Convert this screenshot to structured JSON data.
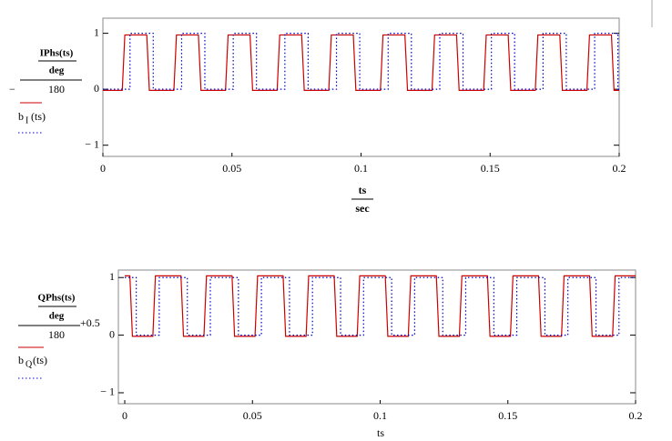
{
  "chart_data": [
    {
      "type": "line",
      "y_label": {
        "prefix": "−",
        "numerator": "IPhs(ts)",
        "inner_denominator": "deg",
        "denominator": "180"
      },
      "x_label": {
        "numerator": "ts",
        "denominator": "sec"
      },
      "xlim": [
        0,
        0.2
      ],
      "ylim": [
        -1.2,
        1.27
      ],
      "xticks": [
        0,
        0.05,
        0.1,
        0.15,
        0.2
      ],
      "yticks": [
        {
          "value": -1,
          "label": "− 1"
        },
        0,
        1
      ],
      "series": [
        {
          "color": "#cc0000",
          "style": "solid",
          "x": [
            0,
            0.0075,
            0.0085,
            0.017,
            0.018,
            0.0275,
            0.0285,
            0.037,
            0.038,
            0.0475,
            0.0485,
            0.057,
            0.058,
            0.0675,
            0.0685,
            0.077,
            0.078,
            0.0875,
            0.0885,
            0.097,
            0.098,
            0.1075,
            0.1085,
            0.117,
            0.118,
            0.1275,
            0.1285,
            0.137,
            0.138,
            0.1475,
            0.1485,
            0.157,
            0.158,
            0.1675,
            0.1685,
            0.177,
            0.178,
            0.1875,
            0.1885,
            0.197,
            0.198,
            0.2
          ],
          "values": [
            -0.02,
            -0.02,
            0.97,
            0.97,
            -0.02,
            -0.02,
            0.97,
            0.97,
            -0.02,
            -0.02,
            0.97,
            0.97,
            -0.02,
            -0.02,
            0.97,
            0.97,
            -0.02,
            -0.02,
            0.97,
            0.97,
            -0.02,
            -0.02,
            0.97,
            0.97,
            -0.02,
            -0.02,
            0.97,
            0.97,
            -0.02,
            -0.02,
            0.97,
            0.97,
            -0.02,
            -0.02,
            0.97,
            0.97,
            -0.02,
            -0.02,
            0.97,
            0.97,
            -0.02,
            -0.02
          ]
        },
        {
          "name": "b",
          "name_sub": "I",
          "name_suffix": "(ts)",
          "color": "#0000cc",
          "style": "dotted",
          "x": [
            0,
            0.0105,
            0.0105,
            0.0195,
            0.0195,
            0.0305,
            0.0305,
            0.0395,
            0.0395,
            0.0505,
            0.0505,
            0.0595,
            0.0595,
            0.0705,
            0.0705,
            0.0795,
            0.0795,
            0.0905,
            0.0905,
            0.0995,
            0.0995,
            0.1105,
            0.1105,
            0.1195,
            0.1195,
            0.1305,
            0.1305,
            0.1395,
            0.1395,
            0.1505,
            0.1505,
            0.1595,
            0.1595,
            0.1705,
            0.1705,
            0.1795,
            0.1795,
            0.1905,
            0.1905,
            0.1995,
            0.1995,
            0.2
          ],
          "values": [
            0,
            0,
            1,
            1,
            0,
            0,
            1,
            1,
            0,
            0,
            1,
            1,
            0,
            0,
            1,
            1,
            0,
            0,
            1,
            1,
            0,
            0,
            1,
            1,
            0,
            0,
            1,
            1,
            0,
            0,
            1,
            1,
            0,
            0,
            1,
            1,
            0,
            0,
            1,
            1,
            0,
            0
          ]
        }
      ]
    },
    {
      "type": "line",
      "y_label": {
        "numerator": "QPhs(ts)",
        "inner_denominator": "deg",
        "denominator": "180",
        "suffix": "+0.5"
      },
      "x_label": {
        "numerator": "ts"
      },
      "xlim": [
        -0.0025,
        0.2
      ],
      "ylim": [
        -1.19,
        1.13
      ],
      "xticks": [
        0,
        0.05,
        0.1,
        0.15,
        0.2
      ],
      "yticks": [
        {
          "value": -1,
          "label": "− 1"
        },
        0,
        1
      ],
      "series": [
        {
          "color": "#cc0000",
          "style": "solid",
          "x": [
            0,
            0.002,
            0.003,
            0.011,
            0.012,
            0.022,
            0.023,
            0.031,
            0.032,
            0.042,
            0.043,
            0.051,
            0.052,
            0.062,
            0.063,
            0.071,
            0.072,
            0.082,
            0.083,
            0.091,
            0.092,
            0.102,
            0.103,
            0.111,
            0.112,
            0.122,
            0.123,
            0.131,
            0.132,
            0.142,
            0.143,
            0.151,
            0.152,
            0.162,
            0.163,
            0.171,
            0.172,
            0.182,
            0.183,
            0.191,
            0.192,
            0.2
          ],
          "values": [
            1.03,
            1.03,
            -0.02,
            -0.02,
            1.03,
            1.03,
            -0.02,
            -0.02,
            1.03,
            1.03,
            -0.02,
            -0.02,
            1.03,
            1.03,
            -0.02,
            -0.02,
            1.03,
            1.03,
            -0.02,
            -0.02,
            1.03,
            1.03,
            -0.02,
            -0.02,
            1.03,
            1.03,
            -0.02,
            -0.02,
            1.03,
            1.03,
            -0.02,
            -0.02,
            1.03,
            1.03,
            -0.02,
            -0.02,
            1.03,
            1.03,
            -0.02,
            -0.02,
            1.03,
            1.03
          ]
        },
        {
          "name": "b",
          "name_sub": "Q",
          "name_suffix": "(ts)",
          "color": "#0000cc",
          "style": "dotted",
          "x": [
            0,
            0.0045,
            0.0045,
            0.0135,
            0.0135,
            0.0245,
            0.0245,
            0.0335,
            0.0335,
            0.0445,
            0.0445,
            0.0535,
            0.0535,
            0.0645,
            0.0645,
            0.0735,
            0.0735,
            0.0845,
            0.0845,
            0.0935,
            0.0935,
            0.1045,
            0.1045,
            0.1135,
            0.1135,
            0.1245,
            0.1245,
            0.1335,
            0.1335,
            0.1445,
            0.1445,
            0.1535,
            0.1535,
            0.1645,
            0.1645,
            0.1735,
            0.1735,
            0.1845,
            0.1845,
            0.1935,
            0.1935,
            0.2
          ],
          "values": [
            1,
            1,
            0,
            0,
            1,
            1,
            0,
            0,
            1,
            1,
            0,
            0,
            1,
            1,
            0,
            0,
            1,
            1,
            0,
            0,
            1,
            1,
            0,
            0,
            1,
            1,
            0,
            0,
            1,
            1,
            0,
            0,
            1,
            1,
            0,
            0,
            1,
            1,
            0,
            0,
            1,
            1
          ]
        }
      ]
    }
  ]
}
